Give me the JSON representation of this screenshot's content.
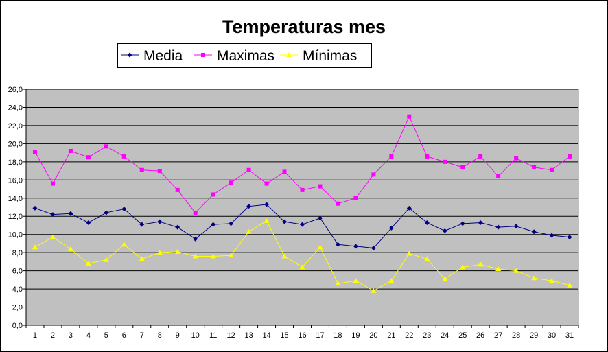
{
  "chart_data": {
    "type": "line",
    "title": "Temperaturas mes",
    "xlabel": "",
    "ylabel": "",
    "x": [
      1,
      2,
      3,
      4,
      5,
      6,
      7,
      8,
      9,
      10,
      11,
      12,
      13,
      14,
      15,
      16,
      17,
      18,
      19,
      20,
      21,
      22,
      23,
      24,
      25,
      26,
      27,
      28,
      29,
      30,
      31
    ],
    "ylim": [
      0,
      26
    ],
    "y_ticks": [
      "0,0",
      "2,0",
      "4,0",
      "6,0",
      "8,0",
      "10,0",
      "12,0",
      "14,0",
      "16,0",
      "18,0",
      "20,0",
      "22,0",
      "24,0",
      "26,0"
    ],
    "y_tick_values": [
      0,
      2,
      4,
      6,
      8,
      10,
      12,
      14,
      16,
      18,
      20,
      22,
      24,
      26
    ],
    "grid": true,
    "legend_position": "top",
    "plot_background": "#C0C0C0",
    "series": [
      {
        "name": "Media",
        "color": "#000080",
        "marker": "diamond",
        "values": [
          12.9,
          12.2,
          12.3,
          11.3,
          12.4,
          12.8,
          11.1,
          11.4,
          10.8,
          9.5,
          11.1,
          11.2,
          13.1,
          13.3,
          11.4,
          11.1,
          11.8,
          8.9,
          8.7,
          8.5,
          10.7,
          12.9,
          11.3,
          10.4,
          11.2,
          11.3,
          10.8,
          10.9,
          10.3,
          9.9,
          9.7
        ]
      },
      {
        "name": "Maximas",
        "color": "#FF00FF",
        "marker": "square",
        "values": [
          19.1,
          15.6,
          19.2,
          18.5,
          19.7,
          18.6,
          17.1,
          17.0,
          14.9,
          12.4,
          14.4,
          15.7,
          17.1,
          15.6,
          16.9,
          14.9,
          15.3,
          13.4,
          14.0,
          16.6,
          18.6,
          23.0,
          18.6,
          18.0,
          17.4,
          18.6,
          16.4,
          18.4,
          17.4,
          17.1,
          18.6
        ]
      },
      {
        "name": "Mínimas",
        "color": "#FFFF00",
        "marker": "triangle",
        "values": [
          8.6,
          9.7,
          8.4,
          6.8,
          7.2,
          8.9,
          7.3,
          8.0,
          8.1,
          7.6,
          7.6,
          7.7,
          10.3,
          11.5,
          7.6,
          6.4,
          8.6,
          4.6,
          4.9,
          3.8,
          4.9,
          7.9,
          7.3,
          5.1,
          6.4,
          6.7,
          6.2,
          6.0,
          5.2,
          4.9,
          4.4
        ]
      }
    ]
  }
}
